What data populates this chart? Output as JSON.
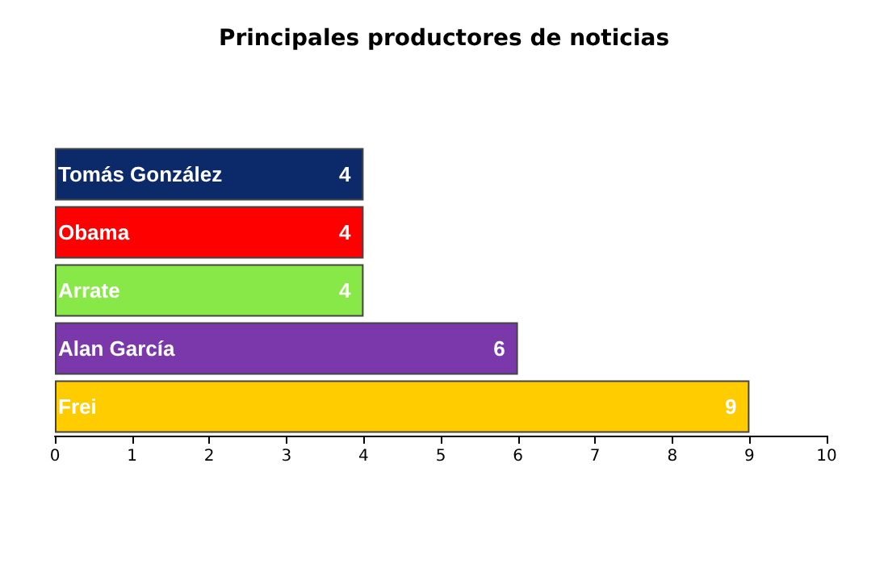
{
  "chart_data": {
    "type": "bar",
    "orientation": "horizontal",
    "title": "Principales productores de noticias",
    "categories": [
      "Tomás González",
      "Obama",
      "Arrate",
      "Alan García",
      "Frei"
    ],
    "values": [
      4,
      4,
      4,
      6,
      9
    ],
    "colors": [
      "#0c2a6a",
      "#ff0000",
      "#88e848",
      "#7a38aa",
      "#ffcc00"
    ],
    "xlim": [
      0,
      10
    ],
    "xticks": [
      0,
      1,
      2,
      3,
      4,
      5,
      6,
      7,
      8,
      9,
      10
    ],
    "data_labels": true
  }
}
